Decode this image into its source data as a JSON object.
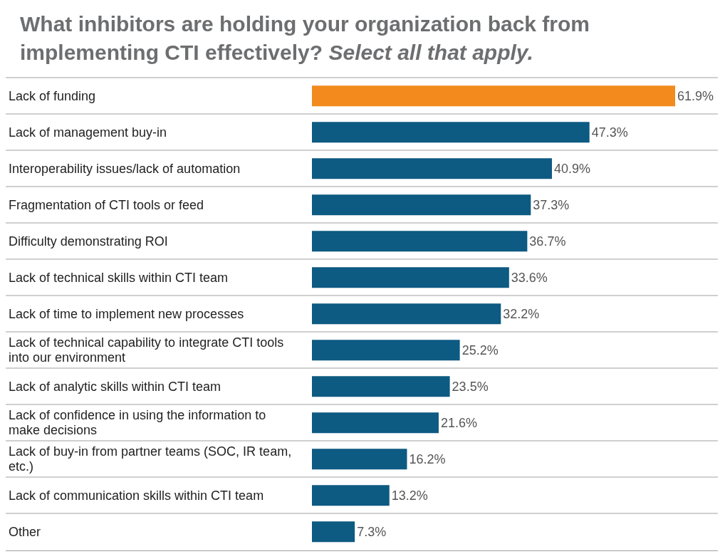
{
  "chart_data": {
    "type": "bar",
    "orientation": "horizontal",
    "title": "What inhibitors are holding your organization back from implementing CTI effectively?",
    "subtitle": "Select all that apply.",
    "categories": [
      "Lack of funding",
      "Lack of management buy-in",
      "Interoperability issues/lack of automation",
      "Fragmentation of CTI tools or feed",
      "Difficulty demonstrating ROI",
      "Lack of technical skills within CTI team",
      "Lack of time to implement new processes",
      "Lack of technical capability to integrate CTI tools into our environment",
      "Lack of analytic skills within CTI team",
      "Lack of confidence in using the information to make decisions",
      "Lack of buy-in from partner teams (SOC, IR team, etc.)",
      "Lack of communication skills within CTI team",
      "Other"
    ],
    "values": [
      61.9,
      47.3,
      40.9,
      37.3,
      36.7,
      33.6,
      32.2,
      25.2,
      23.5,
      21.6,
      16.2,
      13.2,
      7.3
    ],
    "value_labels": [
      "61.9%",
      "47.3%",
      "40.9%",
      "37.3%",
      "36.7%",
      "33.6%",
      "32.2%",
      "25.2%",
      "23.5%",
      "21.6%",
      "16.2%",
      "13.2%",
      "7.3%"
    ],
    "colors": [
      "#f28a1e",
      "#0d5a82",
      "#0d5a82",
      "#0d5a82",
      "#0d5a82",
      "#0d5a82",
      "#0d5a82",
      "#0d5a82",
      "#0d5a82",
      "#0d5a82",
      "#0d5a82",
      "#0d5a82",
      "#0d5a82"
    ]
  }
}
